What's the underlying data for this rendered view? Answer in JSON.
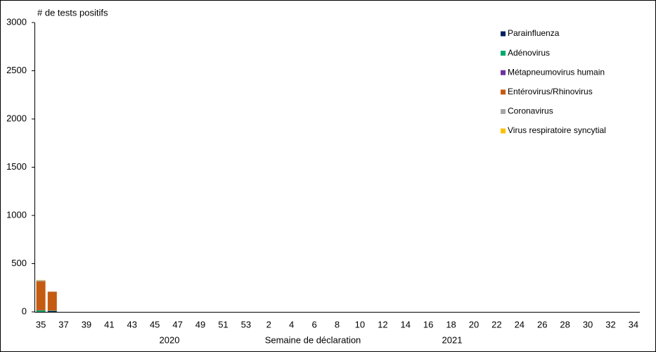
{
  "chart_data": {
    "type": "stacked_bar",
    "y_title": "# de tests positifs",
    "x_title": "Semaine de déclaration",
    "year_labels": [
      "2020",
      "2021"
    ],
    "categories": [
      "35",
      null,
      "37",
      null,
      "39",
      null,
      "41",
      null,
      "43",
      null,
      "45",
      null,
      "47",
      null,
      "49",
      null,
      "51",
      null,
      "53",
      null,
      "2",
      null,
      "4",
      null,
      "6",
      null,
      "8",
      null,
      "10",
      null,
      "12",
      null,
      "14",
      null,
      "16",
      null,
      "18",
      null,
      "20",
      null,
      "22",
      null,
      "24",
      null,
      "26",
      null,
      "28",
      null,
      "30",
      null,
      "32",
      null,
      "34"
    ],
    "series": [
      {
        "name": "Parainfluenza",
        "color": "#002060",
        "values": [
          0,
          8,
          null,
          null,
          null,
          null,
          null,
          null,
          null,
          null,
          null,
          null,
          null,
          null,
          null,
          null,
          null,
          null,
          null,
          null,
          null,
          null,
          null,
          null,
          null,
          null,
          null,
          null,
          null,
          null,
          null,
          null,
          null,
          null,
          null,
          null,
          null,
          null,
          null,
          null,
          null,
          null,
          null,
          null,
          null,
          null,
          null,
          null,
          null,
          null,
          null,
          null,
          null
        ]
      },
      {
        "name": "Adénovirus",
        "color": "#00a86b",
        "values": [
          15,
          5,
          null,
          null,
          null,
          null,
          null,
          null,
          null,
          null,
          null,
          null,
          null,
          null,
          null,
          null,
          null,
          null,
          null,
          null,
          null,
          null,
          null,
          null,
          null,
          null,
          null,
          null,
          null,
          null,
          null,
          null,
          null,
          null,
          null,
          null,
          null,
          null,
          null,
          null,
          null,
          null,
          null,
          null,
          null,
          null,
          null,
          null,
          null,
          null,
          null,
          null,
          null
        ]
      },
      {
        "name": "Métapneumovirus humain",
        "color": "#7030a0",
        "values": [
          2,
          0,
          null,
          null,
          null,
          null,
          null,
          null,
          null,
          null,
          null,
          null,
          null,
          null,
          null,
          null,
          null,
          null,
          null,
          null,
          null,
          null,
          null,
          null,
          null,
          null,
          null,
          null,
          null,
          null,
          null,
          null,
          null,
          null,
          null,
          null,
          null,
          null,
          null,
          null,
          null,
          null,
          null,
          null,
          null,
          null,
          null,
          null,
          null,
          null,
          null,
          null,
          null
        ]
      },
      {
        "name": "Entérovirus/Rhinovirus",
        "color": "#c55a11",
        "values": [
          300,
          195,
          null,
          null,
          null,
          null,
          null,
          null,
          null,
          null,
          null,
          null,
          null,
          null,
          null,
          null,
          null,
          null,
          null,
          null,
          null,
          null,
          null,
          null,
          null,
          null,
          null,
          null,
          null,
          null,
          null,
          null,
          null,
          null,
          null,
          null,
          null,
          null,
          null,
          null,
          null,
          null,
          null,
          null,
          null,
          null,
          null,
          null,
          null,
          null,
          null,
          null,
          null
        ]
      },
      {
        "name": "Coronavirus",
        "color": "#a6a6a6",
        "values": [
          10,
          2,
          null,
          null,
          null,
          null,
          null,
          null,
          null,
          null,
          null,
          null,
          null,
          null,
          null,
          null,
          null,
          null,
          null,
          null,
          null,
          null,
          null,
          null,
          null,
          null,
          null,
          null,
          null,
          null,
          null,
          null,
          null,
          null,
          null,
          null,
          null,
          null,
          null,
          null,
          null,
          null,
          null,
          null,
          null,
          null,
          null,
          null,
          null,
          null,
          null,
          null,
          null
        ]
      },
      {
        "name": "Virus respiratoire syncytial",
        "color": "#ffc000",
        "values": [
          3,
          0,
          null,
          null,
          null,
          null,
          null,
          null,
          null,
          null,
          null,
          null,
          null,
          null,
          null,
          null,
          null,
          null,
          null,
          null,
          null,
          null,
          null,
          null,
          null,
          null,
          null,
          null,
          null,
          null,
          null,
          null,
          null,
          null,
          null,
          null,
          null,
          null,
          null,
          null,
          null,
          null,
          null,
          null,
          null,
          null,
          null,
          null,
          null,
          null,
          null,
          null,
          null
        ]
      }
    ],
    "ylim": [
      0,
      3000
    ],
    "yticks": [
      0,
      500,
      1000,
      1500,
      2000,
      2500,
      3000
    ],
    "grid": false,
    "legend": "top-right"
  }
}
